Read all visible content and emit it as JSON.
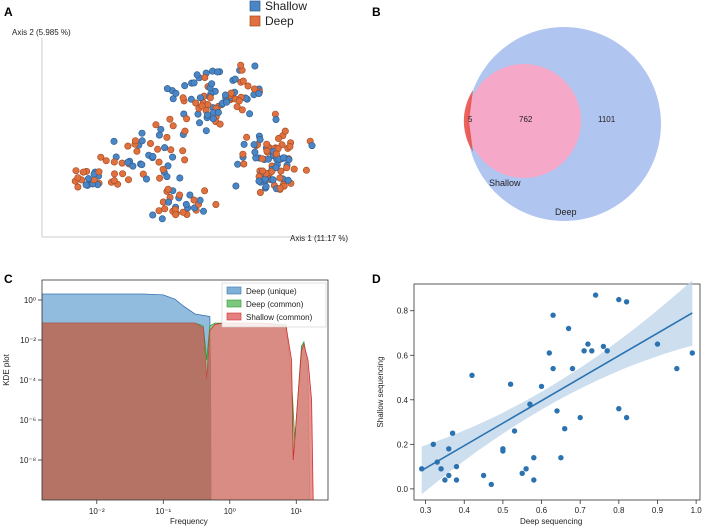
{
  "panels": {
    "a": "A",
    "b": "B",
    "c": "C",
    "d": "D"
  },
  "colors": {
    "shallow": "#4a86c5",
    "deep": "#e07040",
    "venn_deep": "#a9bff0",
    "venn_shallow": "#f5a8c8",
    "venn_only": "#e8534a",
    "kde_unique": "#7fb0d8",
    "kde_common": "#7ec87e",
    "kde_shallow": "#e58080",
    "kde_overlap": "#b07060",
    "reg": "#2a72b0",
    "band": "#bcd3ea"
  },
  "legend_top": {
    "shallow": "Shallow",
    "deep": "Deep"
  },
  "chart_data": [
    {
      "type": "scatter",
      "panel": "A",
      "title": "",
      "xlabel": "Axis 1 (11.17 %)",
      "ylabel": "Axis 2 (5.985 %)",
      "series": [
        {
          "name": "Shallow"
        },
        {
          "name": "Deep"
        }
      ],
      "note": "PCoA ordination, ~400 samples per group, no numeric ticks shown"
    },
    {
      "type": "venn",
      "panel": "B",
      "sets": [
        "Shallow",
        "Deep"
      ],
      "only_shallow": 5,
      "intersection": 762,
      "only_deep": 1101
    },
    {
      "type": "area",
      "panel": "C",
      "xlabel": "Frequency",
      "ylabel": "KDE plot",
      "xscale": "log",
      "yscale": "log",
      "xlim": [
        0.0015,
        30
      ],
      "ylim": [
        1e-10,
        10
      ],
      "xticks": [
        {
          "v": 0.01,
          "label": "10⁻²"
        },
        {
          "v": 0.1,
          "label": "10⁻¹"
        },
        {
          "v": 1,
          "label": "10⁰"
        },
        {
          "v": 10,
          "label": "10¹"
        }
      ],
      "yticks": [
        {
          "v": 1,
          "label": "10⁰"
        },
        {
          "v": 0.01,
          "label": "10⁻²"
        },
        {
          "v": 0.0001,
          "label": "10⁻⁴"
        },
        {
          "v": 1e-06,
          "label": "10⁻⁶"
        },
        {
          "v": 1e-08,
          "label": "10⁻⁸"
        }
      ],
      "series": [
        {
          "name": "Deep (unique)",
          "x": [
            0.0015,
            0.01,
            0.05,
            0.1,
            0.15,
            0.2,
            0.3,
            0.5,
            0.52,
            0.53
          ],
          "y": [
            2,
            2,
            2,
            1.8,
            1.1,
            0.5,
            0.2,
            0.15,
            0.001,
            1e-10
          ]
        },
        {
          "name": "Deep (common)",
          "x": [
            0.0015,
            0.1,
            0.3,
            0.4,
            0.45,
            0.5,
            0.6,
            0.8,
            1.5,
            3,
            7,
            8.5,
            9.5,
            10.5,
            12,
            13,
            14,
            15,
            16
          ],
          "y": [
            0.07,
            0.07,
            0.07,
            0.05,
            0.001,
            0.05,
            0.07,
            0.07,
            0.07,
            0.07,
            0.06,
            0.0001,
            1e-07,
            1e-05,
            0.005,
            0.008,
            0.002,
            0.0001,
            1e-10
          ]
        },
        {
          "name": "Shallow (common)",
          "x": [
            0.0015,
            0.1,
            0.3,
            0.4,
            0.45,
            0.5,
            0.6,
            0.8,
            1.5,
            3,
            7,
            8.5,
            9,
            9.5,
            10.5,
            12,
            13,
            15,
            17,
            18
          ],
          "y": [
            0.07,
            0.07,
            0.07,
            0.04,
            0.0001,
            0.03,
            0.06,
            0.07,
            0.07,
            0.07,
            0.05,
            0.001,
            1e-08,
            1e-07,
            1e-05,
            0.003,
            0.006,
            0.001,
            1e-05,
            1e-10
          ]
        }
      ]
    },
    {
      "type": "scatter",
      "panel": "D",
      "xlabel": "Deep sequencing",
      "ylabel": "Shallow sequencing",
      "xlim": [
        0.27,
        1.01
      ],
      "ylim": [
        -0.05,
        0.92
      ],
      "xticks": [
        0.3,
        0.4,
        0.5,
        0.6,
        0.7,
        0.8,
        0.9,
        1.0
      ],
      "yticks": [
        0.0,
        0.2,
        0.4,
        0.6,
        0.8
      ],
      "x": [
        0.29,
        0.32,
        0.33,
        0.34,
        0.35,
        0.36,
        0.36,
        0.37,
        0.38,
        0.38,
        0.42,
        0.45,
        0.47,
        0.5,
        0.5,
        0.52,
        0.53,
        0.55,
        0.56,
        0.57,
        0.58,
        0.58,
        0.6,
        0.62,
        0.63,
        0.63,
        0.64,
        0.65,
        0.66,
        0.67,
        0.68,
        0.7,
        0.71,
        0.72,
        0.73,
        0.74,
        0.76,
        0.77,
        0.8,
        0.8,
        0.82,
        0.82,
        0.9,
        0.95,
        0.99
      ],
      "y": [
        0.09,
        0.2,
        0.12,
        0.09,
        0.04,
        0.18,
        0.06,
        0.25,
        0.04,
        0.1,
        0.51,
        0.06,
        0.02,
        0.18,
        0.17,
        0.47,
        0.26,
        0.07,
        0.09,
        0.38,
        0.14,
        0.04,
        0.46,
        0.61,
        0.78,
        0.54,
        0.35,
        0.14,
        0.27,
        0.72,
        0.54,
        0.32,
        0.62,
        0.65,
        0.62,
        0.87,
        0.64,
        0.62,
        0.85,
        0.36,
        0.84,
        0.32,
        0.65,
        0.54,
        0.61
      ],
      "regression": {
        "slope": 1.01,
        "intercept": -0.21
      }
    }
  ]
}
